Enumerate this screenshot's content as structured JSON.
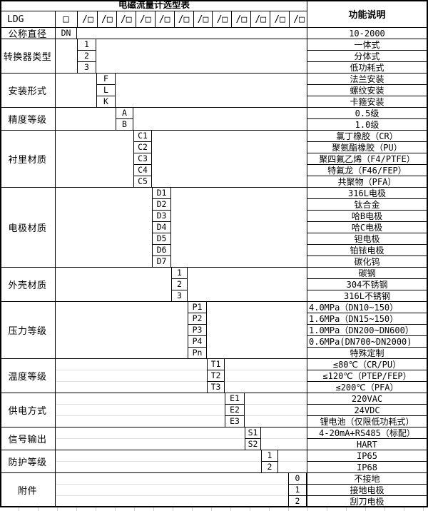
{
  "title": "电磁流量计选型表",
  "function_header": "功能说明",
  "model_row": {
    "prefix": "LDG",
    "box": "□",
    "slot": "/□",
    "slot_count": 12
  },
  "sections": [
    {
      "label": "公称直径",
      "codes": [
        "DN"
      ],
      "functions": [
        "10-2000"
      ],
      "fn_aligns": [
        "center"
      ]
    },
    {
      "label": "转换器类型",
      "codes": [
        "1",
        "2",
        "3"
      ],
      "functions": [
        "一体式",
        "分体式",
        "低功耗式"
      ],
      "fn_aligns": [
        "center",
        "center",
        "center"
      ]
    },
    {
      "label": "安装形式",
      "codes": [
        "F",
        "L",
        "K"
      ],
      "functions": [
        "法兰安装",
        "螺纹安装",
        "卡箍安装"
      ],
      "fn_aligns": [
        "center",
        "center",
        "center"
      ]
    },
    {
      "label": "精度等级",
      "codes": [
        "A",
        "B"
      ],
      "functions": [
        "0.5级",
        "1.0级"
      ],
      "fn_aligns": [
        "center",
        "center"
      ]
    },
    {
      "label": "衬里材质",
      "codes": [
        "C1",
        "C2",
        "C3",
        "C4",
        "C5"
      ],
      "functions": [
        "氯丁橡胶（CR）",
        "聚氨酯橡胶（PU）",
        "聚四氟乙烯（F4/PTFE）",
        "特氟龙（F46/FEP）",
        "共聚物（PFA）"
      ],
      "fn_aligns": [
        "center",
        "center",
        "center",
        "center",
        "center"
      ]
    },
    {
      "label": "电极材质",
      "codes": [
        "D1",
        "D2",
        "D3",
        "D4",
        "D5",
        "D6",
        "D7"
      ],
      "functions": [
        "316L电极",
        "钛合金",
        "哈B电极",
        "哈C电极",
        "钽电极",
        "铂铱电极",
        "碳化钨"
      ],
      "fn_aligns": [
        "center",
        "center",
        "center",
        "center",
        "center",
        "center",
        "center"
      ]
    },
    {
      "label": "外壳材质",
      "codes": [
        "1",
        "2",
        "3"
      ],
      "functions": [
        "碳钢",
        "304不锈钢",
        "316L不锈钢"
      ],
      "fn_aligns": [
        "center",
        "center",
        "center"
      ]
    },
    {
      "label": "压力等级",
      "codes": [
        "P1",
        "P2",
        "P3",
        "P4",
        "Pn"
      ],
      "functions": [
        "4.0MPa（DN10~150）",
        "1.6MPa（DN15~150）",
        "1.0MPa（DN200~DN600）",
        "0.6MPa(DN700~DN2000)",
        "特殊定制"
      ],
      "fn_aligns": [
        "left",
        "left",
        "left",
        "left",
        "center"
      ]
    },
    {
      "label": "温度等级",
      "codes": [
        "T1",
        "T2",
        "T3"
      ],
      "functions": [
        "≤80℃（CR/PU）",
        "≤120℃（PTEP/FEP）",
        "≤200℃（PFA）"
      ],
      "fn_aligns": [
        "center",
        "center",
        "center"
      ]
    },
    {
      "label": "供电方式",
      "codes": [
        "E1",
        "E2",
        "E3"
      ],
      "functions": [
        "220VAC",
        "24VDC",
        "锂电池（仅限低功耗式）"
      ],
      "fn_aligns": [
        "center",
        "center",
        "center"
      ]
    },
    {
      "label": "信号输出",
      "codes": [
        "S1",
        "S2"
      ],
      "functions": [
        "4-20mA+RS485（标配）",
        "HART"
      ],
      "fn_aligns": [
        "center",
        "center"
      ]
    },
    {
      "label": "防护等级",
      "codes": [
        "1",
        "2"
      ],
      "functions": [
        "IP65",
        "IP68"
      ],
      "fn_aligns": [
        "center",
        "center"
      ]
    },
    {
      "label": "附件",
      "codes": [
        "0",
        "1",
        "2"
      ],
      "functions": [
        "不接地",
        "接地电极",
        "刮刀电极"
      ],
      "fn_aligns": [
        "center",
        "center",
        "center"
      ]
    }
  ]
}
